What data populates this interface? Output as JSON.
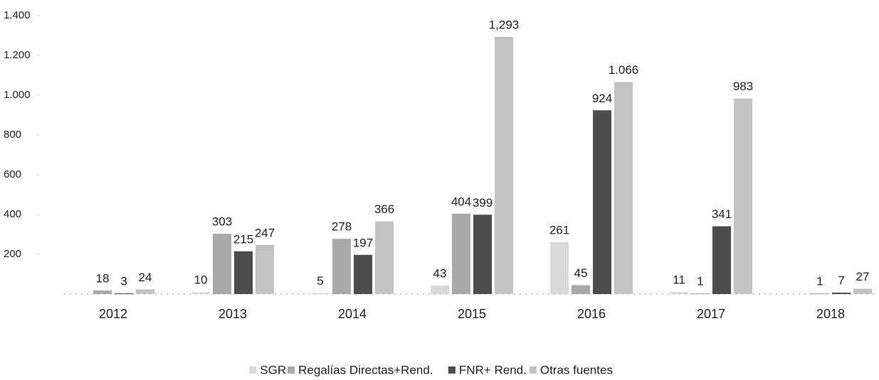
{
  "chart_data": {
    "type": "bar",
    "categories": [
      "2012",
      "2013",
      "2014",
      "2015",
      "2016",
      "2017",
      "2018"
    ],
    "series": [
      {
        "name": "SGR",
        "color": "#d9d9d9",
        "values": [
          null,
          10,
          5,
          43,
          261,
          11,
          null
        ]
      },
      {
        "name": "Regalías Directas+Rend.",
        "color": "#a9a9a9",
        "values": [
          18,
          303,
          278,
          404,
          45,
          1,
          1
        ]
      },
      {
        "name": "FNR+ Rend.",
        "color": "#4d4d4d",
        "values": [
          3,
          215,
          197,
          399,
          924,
          341,
          7
        ]
      },
      {
        "name": "Otras fuentes",
        "color": "#c2c2c2",
        "values": [
          24,
          247,
          366,
          1293,
          1066,
          983,
          27
        ],
        "value_labels": [
          "24",
          "247",
          "366",
          "1,293",
          "1.066",
          "983",
          "27"
        ]
      }
    ],
    "ylim": [
      0,
      1400
    ],
    "yticks": [
      200,
      400,
      600,
      800,
      {
        "value": 1000,
        "label": "1.000"
      },
      {
        "value": 1200,
        "label": "1.200"
      },
      {
        "value": 1400,
        "label": "1.400"
      }
    ],
    "legend": "bottom",
    "grid": false
  }
}
